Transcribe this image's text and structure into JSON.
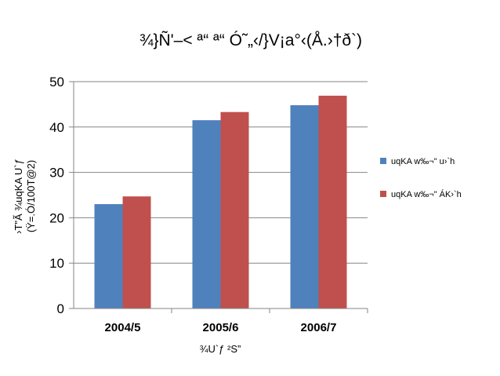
{
  "chart_data": {
    "type": "bar",
    "title": "¾}Ñ'–< ª“ ª“ Ó˜„‹/}V¡a°‹(Å.›†ð`)",
    "xlabel": "¾U`ƒ ²S”",
    "ylabel_lines": [
      "›T\"Ã ¾uqKA U`ƒ",
      "(Ÿ=.Ó/100T@2)"
    ],
    "categories": [
      "2004/5",
      "2005/6",
      "2006/7"
    ],
    "yticks": [
      0,
      10,
      20,
      30,
      40,
      50
    ],
    "ylim": [
      0,
      50
    ],
    "grid": true,
    "legend_position": "right",
    "series": [
      {
        "name": "uqKA w‰¬\" u›`h",
        "color": "#4F81BD",
        "values": [
          23.0,
          41.5,
          44.8
        ]
      },
      {
        "name": "uqKA w‰¬\" ÁK›`h",
        "color": "#C0504D",
        "values": [
          24.7,
          43.3,
          46.9
        ]
      }
    ]
  }
}
